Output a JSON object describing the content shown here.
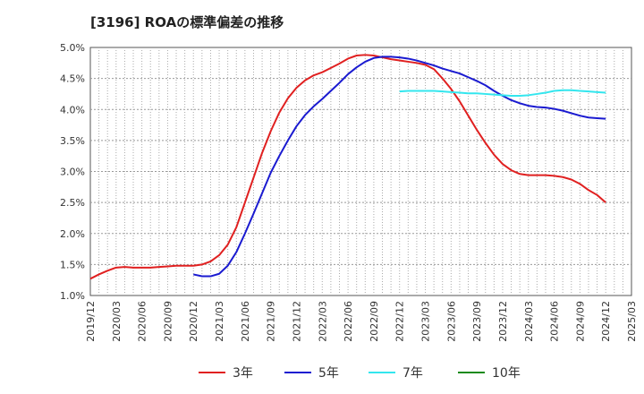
{
  "title": "[3196]  ROAの標準偏差の推移",
  "chart_data": {
    "type": "line",
    "title": "[3196]  ROAの標準偏差の推移",
    "xlabel": "",
    "ylabel": "",
    "ylim": [
      1.0,
      5.0
    ],
    "y_ticks": [
      "1.0%",
      "1.5%",
      "2.0%",
      "2.5%",
      "3.0%",
      "3.5%",
      "4.0%",
      "4.5%",
      "5.0%"
    ],
    "x_ticks": [
      "2019/12",
      "2020/03",
      "2020/06",
      "2020/09",
      "2020/12",
      "2021/03",
      "2021/06",
      "2021/09",
      "2021/12",
      "2022/03",
      "2022/06",
      "2022/09",
      "2022/12",
      "2023/03",
      "2023/06",
      "2023/09",
      "2023/12",
      "2024/03",
      "2024/06",
      "2024/09",
      "2024/12",
      "2025/03"
    ],
    "grid": true,
    "legend_position": "bottom",
    "series": [
      {
        "name": "3年",
        "color": "#e02020",
        "x": [
          "2019/12",
          "2020/01",
          "2020/02",
          "2020/03",
          "2020/04",
          "2020/05",
          "2020/06",
          "2020/07",
          "2020/08",
          "2020/09",
          "2020/10",
          "2020/11",
          "2020/12",
          "2021/01",
          "2021/02",
          "2021/03",
          "2021/04",
          "2021/05",
          "2021/06",
          "2021/07",
          "2021/08",
          "2021/09",
          "2021/10",
          "2021/11",
          "2021/12",
          "2022/01",
          "2022/02",
          "2022/03",
          "2022/04",
          "2022/05",
          "2022/06",
          "2022/07",
          "2022/08",
          "2022/09",
          "2022/10",
          "2022/11",
          "2022/12",
          "2023/01",
          "2023/02",
          "2023/03",
          "2023/04",
          "2023/05",
          "2023/06",
          "2023/07",
          "2023/08",
          "2023/09",
          "2023/10",
          "2023/11",
          "2023/12",
          "2024/01",
          "2024/02",
          "2024/03",
          "2024/04",
          "2024/05",
          "2024/06",
          "2024/07",
          "2024/08",
          "2024/09",
          "2024/10",
          "2024/11",
          "2024/12"
        ],
        "values": [
          1.27,
          1.34,
          1.4,
          1.45,
          1.46,
          1.45,
          1.45,
          1.45,
          1.46,
          1.47,
          1.48,
          1.48,
          1.48,
          1.5,
          1.55,
          1.65,
          1.82,
          2.1,
          2.5,
          2.9,
          3.3,
          3.65,
          3.95,
          4.18,
          4.35,
          4.47,
          4.55,
          4.6,
          4.67,
          4.74,
          4.82,
          4.87,
          4.88,
          4.87,
          4.84,
          4.81,
          4.79,
          4.77,
          4.75,
          4.72,
          4.65,
          4.5,
          4.33,
          4.13,
          3.9,
          3.67,
          3.46,
          3.27,
          3.12,
          3.02,
          2.96,
          2.94,
          2.94,
          2.94,
          2.93,
          2.91,
          2.87,
          2.8,
          2.7,
          2.62,
          2.5
        ]
      },
      {
        "name": "5年",
        "color": "#1a1ad0",
        "x": [
          "2020/12",
          "2021/01",
          "2021/02",
          "2021/03",
          "2021/04",
          "2021/05",
          "2021/06",
          "2021/07",
          "2021/08",
          "2021/09",
          "2021/10",
          "2021/11",
          "2021/12",
          "2022/01",
          "2022/02",
          "2022/03",
          "2022/04",
          "2022/05",
          "2022/06",
          "2022/07",
          "2022/08",
          "2022/09",
          "2022/10",
          "2022/11",
          "2022/12",
          "2023/01",
          "2023/02",
          "2023/03",
          "2023/04",
          "2023/05",
          "2023/06",
          "2023/07",
          "2023/08",
          "2023/09",
          "2023/10",
          "2023/11",
          "2023/12",
          "2024/01",
          "2024/02",
          "2024/03",
          "2024/04",
          "2024/05",
          "2024/06",
          "2024/07",
          "2024/08",
          "2024/09",
          "2024/10",
          "2024/11",
          "2024/12"
        ],
        "values": [
          1.34,
          1.31,
          1.31,
          1.35,
          1.48,
          1.7,
          2.0,
          2.32,
          2.65,
          2.98,
          3.25,
          3.5,
          3.73,
          3.91,
          4.05,
          4.17,
          4.3,
          4.43,
          4.57,
          4.68,
          4.77,
          4.83,
          4.85,
          4.85,
          4.84,
          4.82,
          4.79,
          4.75,
          4.71,
          4.66,
          4.62,
          4.58,
          4.52,
          4.46,
          4.39,
          4.3,
          4.22,
          4.15,
          4.1,
          4.06,
          4.04,
          4.03,
          4.01,
          3.98,
          3.94,
          3.9,
          3.87,
          3.86,
          3.85
        ]
      },
      {
        "name": "7年",
        "color": "#33e6ee",
        "x": [
          "2022/12",
          "2023/01",
          "2023/02",
          "2023/03",
          "2023/04",
          "2023/05",
          "2023/06",
          "2023/07",
          "2023/08",
          "2023/09",
          "2023/10",
          "2023/11",
          "2023/12",
          "2024/01",
          "2024/02",
          "2024/03",
          "2024/04",
          "2024/05",
          "2024/06",
          "2024/07",
          "2024/08",
          "2024/09",
          "2024/10",
          "2024/11",
          "2024/12"
        ],
        "values": [
          4.29,
          4.3,
          4.3,
          4.3,
          4.3,
          4.29,
          4.28,
          4.27,
          4.26,
          4.26,
          4.25,
          4.24,
          4.23,
          4.22,
          4.22,
          4.23,
          4.25,
          4.27,
          4.3,
          4.31,
          4.31,
          4.3,
          4.29,
          4.28,
          4.27
        ]
      },
      {
        "name": "10年",
        "color": "#1a8a1a",
        "x": [],
        "values": []
      }
    ]
  }
}
